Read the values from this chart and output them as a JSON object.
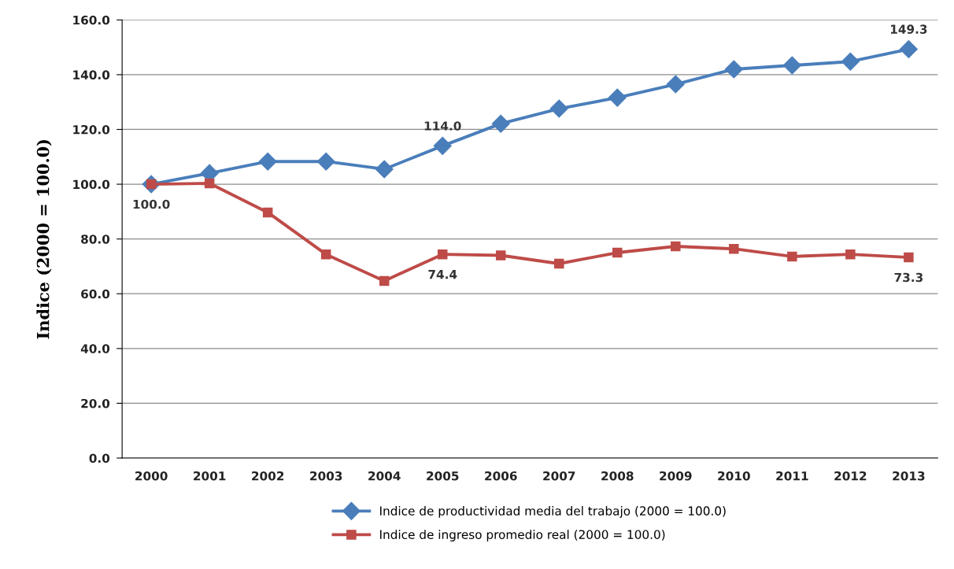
{
  "chart_data": {
    "type": "line",
    "ylabel": "Indice (2000 = 100.0)",
    "categories": [
      "2000",
      "2001",
      "2002",
      "2003",
      "2004",
      "2005",
      "2006",
      "2007",
      "2008",
      "2009",
      "2010",
      "2011",
      "2012",
      "2013"
    ],
    "series": [
      {
        "name": "Indice de productividad media del trabajo (2000 = 100.0)",
        "color": "#4a7ebb",
        "marker": "diamond",
        "values": [
          100.0,
          104.0,
          108.3,
          108.3,
          105.5,
          114.0,
          122.1,
          127.6,
          131.6,
          136.5,
          142.0,
          143.4,
          144.8,
          149.3
        ],
        "value_labels": [
          null,
          null,
          null,
          null,
          null,
          "114.0",
          null,
          null,
          null,
          null,
          null,
          null,
          null,
          "149.3"
        ]
      },
      {
        "name": "Indice de ingreso promedio real (2000 = 100.0)",
        "color": "#be4b48",
        "marker": "square",
        "values": [
          100.0,
          100.3,
          89.7,
          74.4,
          64.7,
          74.4,
          74.0,
          71.0,
          75.0,
          77.3,
          76.4,
          73.6,
          74.4,
          73.3
        ],
        "value_labels": [
          "100.0",
          null,
          null,
          null,
          null,
          "74.4",
          null,
          null,
          null,
          null,
          null,
          null,
          null,
          "73.3"
        ]
      }
    ],
    "ylim": [
      0,
      160
    ],
    "yticks": [
      {
        "value": 0,
        "label": "0.0"
      },
      {
        "value": 20,
        "label": "20.0"
      },
      {
        "value": 40,
        "label": "40.0"
      },
      {
        "value": 60,
        "label": "60.0"
      },
      {
        "value": 80,
        "label": "80.0"
      },
      {
        "value": 100,
        "label": "100.0"
      },
      {
        "value": 120,
        "label": "120.0"
      },
      {
        "value": 140,
        "label": "140.0"
      },
      {
        "value": 160,
        "label": "160.0"
      }
    ],
    "grid": "y",
    "legend": "bottom",
    "line_style": "solid"
  }
}
